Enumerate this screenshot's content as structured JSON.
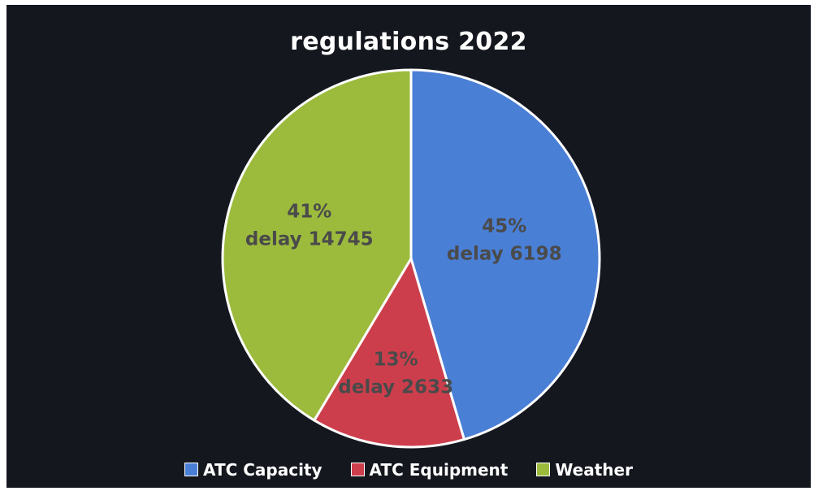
{
  "chart_data": {
    "type": "pie",
    "title": "regulations 2022",
    "legend_position": "bottom",
    "slices": [
      {
        "name": "ATC Capacity",
        "percent": 45,
        "percent_label": "45%",
        "delay_label": "delay 6198",
        "color": "#4a7fd6"
      },
      {
        "name": "ATC Equipment",
        "percent": 13,
        "percent_label": "13%",
        "delay_label": "delay 2633",
        "color": "#cd3e4c"
      },
      {
        "name": "Weather",
        "percent": 41,
        "percent_label": "41%",
        "delay_label": "delay 14745",
        "color": "#9cbb3d"
      }
    ]
  }
}
